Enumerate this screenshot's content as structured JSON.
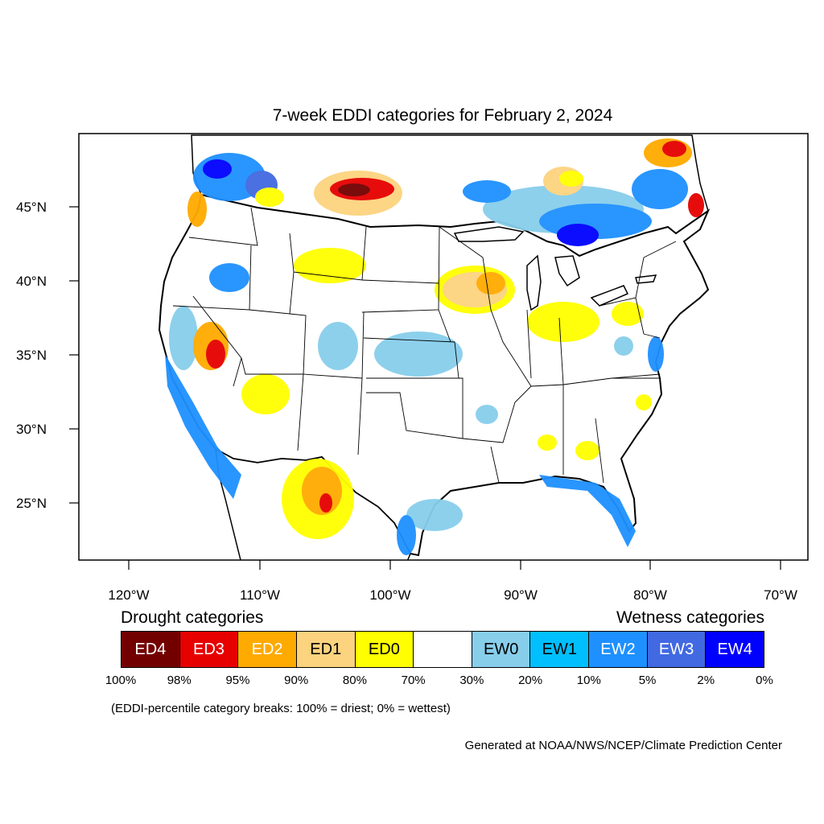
{
  "title": "7-week EDDI categories for February 2, 2024",
  "lat_labels": [
    "45°N",
    "40°N",
    "35°N",
    "30°N",
    "25°N"
  ],
  "lon_labels": [
    "120°W",
    "110°W",
    "100°W",
    "90°W",
    "80°W",
    "70°W"
  ],
  "legend": {
    "drought_heading": "Drought categories",
    "wetness_heading": "Wetness categories",
    "categories": [
      {
        "label": "ED4",
        "color": "#730000",
        "text_color": "#ffffff"
      },
      {
        "label": "ED3",
        "color": "#e60000",
        "text_color": "#ffffff"
      },
      {
        "label": "ED2",
        "color": "#ffaa00",
        "text_color": "#ffffff"
      },
      {
        "label": "ED1",
        "color": "#fcd37f",
        "text_color": "#000000"
      },
      {
        "label": "ED0",
        "color": "#ffff00",
        "text_color": "#000000"
      },
      {
        "label": "",
        "color": "#ffffff",
        "text_color": "#000000"
      },
      {
        "label": "EW0",
        "color": "#87ceeb",
        "text_color": "#000000"
      },
      {
        "label": "EW1",
        "color": "#00bfff",
        "text_color": "#000000"
      },
      {
        "label": "EW2",
        "color": "#1e90ff",
        "text_color": "#ffffff"
      },
      {
        "label": "EW3",
        "color": "#4169e1",
        "text_color": "#ffffff"
      },
      {
        "label": "EW4",
        "color": "#0000ff",
        "text_color": "#ffffff"
      }
    ],
    "breaks": [
      "100%",
      "98%",
      "95%",
      "90%",
      "80%",
      "70%",
      "30%",
      "20%",
      "10%",
      "5%",
      "2%",
      "0%"
    ]
  },
  "note": "(EDDI-percentile category breaks: 100% = driest; 0% = wettest)",
  "credit": "Generated at NOAA/NWS/NCEP/Climate Prediction Center"
}
